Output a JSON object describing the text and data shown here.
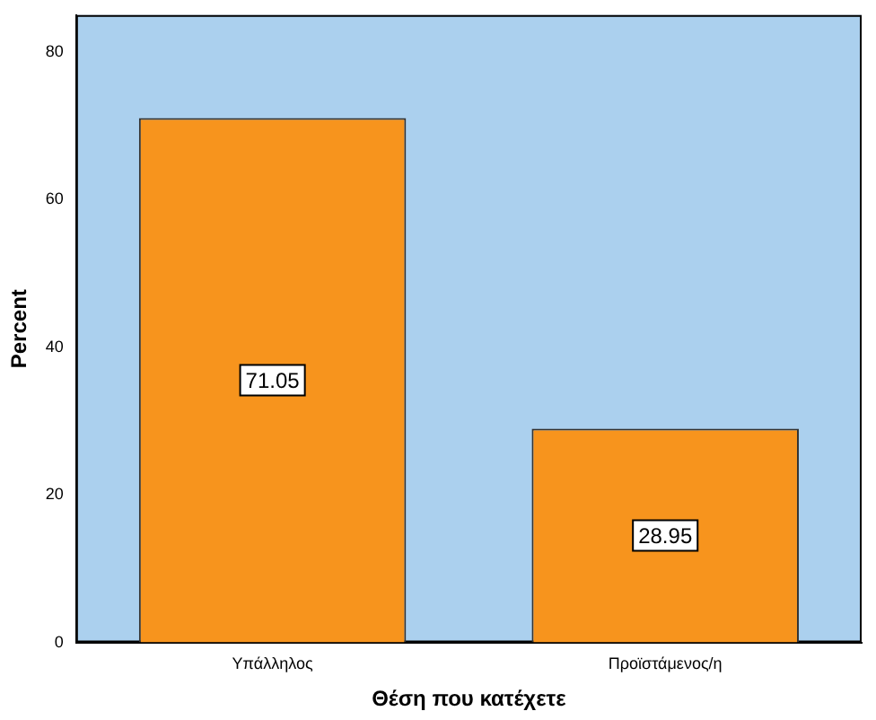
{
  "chart_data": {
    "type": "bar",
    "xlabel": "Θέση που κατέχετε",
    "ylabel": "Percent",
    "categories": [
      "Υπάλληλος",
      "Προϊστάμενος/η"
    ],
    "values": [
      71.05,
      28.95
    ],
    "color": "#f7941d",
    "ylim": [
      0,
      85
    ],
    "yticks": [
      0,
      20,
      40,
      60,
      80
    ],
    "grid": false,
    "legend": false,
    "data_labels": true
  }
}
